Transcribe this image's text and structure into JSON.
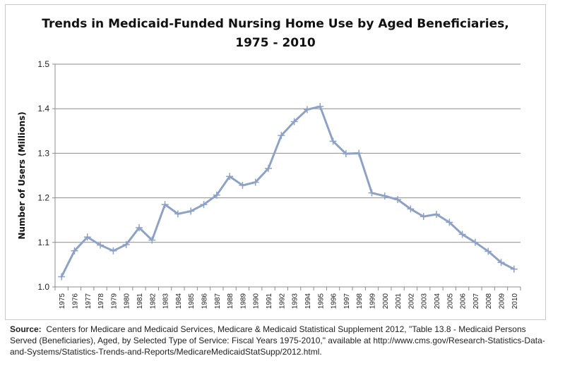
{
  "chart_data": {
    "type": "line",
    "title_line1": "Trends in Medicaid-Funded Nursing Home Use by Aged Beneficiaries,",
    "title_line2": "1975 - 2010",
    "xlabel": "",
    "ylabel": "Number of Users (Millions)",
    "ylim": [
      1.0,
      1.5
    ],
    "yticks": [
      "1.0",
      "1.1",
      "1.2",
      "1.3",
      "1.4",
      "1.5"
    ],
    "grid": true,
    "marker": "plus",
    "line_color": "#8ea2c6",
    "categories": [
      "1975",
      "1976",
      "1977",
      "1978",
      "1979",
      "1980",
      "1981",
      "1982",
      "1983",
      "1984",
      "1985",
      "1986",
      "1987",
      "1988",
      "1989",
      "1990",
      "1991",
      "1992",
      "1993",
      "1994",
      "1995",
      "1996",
      "1997",
      "1998",
      "1999",
      "2000",
      "2001",
      "2002",
      "2003",
      "2004",
      "2005",
      "2006",
      "2007",
      "2008",
      "2009",
      "2010"
    ],
    "series": [
      {
        "name": "Aged Beneficiaries",
        "values": [
          1.023,
          1.081,
          1.112,
          1.094,
          1.081,
          1.095,
          1.133,
          1.105,
          1.185,
          1.164,
          1.17,
          1.185,
          1.206,
          1.248,
          1.228,
          1.235,
          1.266,
          1.34,
          1.371,
          1.398,
          1.405,
          1.327,
          1.299,
          1.3,
          1.211,
          1.204,
          1.196,
          1.175,
          1.158,
          1.163,
          1.145,
          1.118,
          1.1,
          1.08,
          1.055,
          1.04
        ]
      }
    ]
  },
  "source": {
    "label": "Source:",
    "text": "Centers for Medicare and Medicaid Services, Medicare & Medicaid Statistical Supplement 2012, \"Table 13.8 - Medicaid Persons Served (Beneficiaries), Aged, by Selected Type of Service: Fiscal Years 1975-2010,\" available at http://www.cms.gov/Research-Statistics-Data-and-Systems/Statistics-Trends-and-Reports/MedicareMedicaidStatSupp/2012.html."
  }
}
